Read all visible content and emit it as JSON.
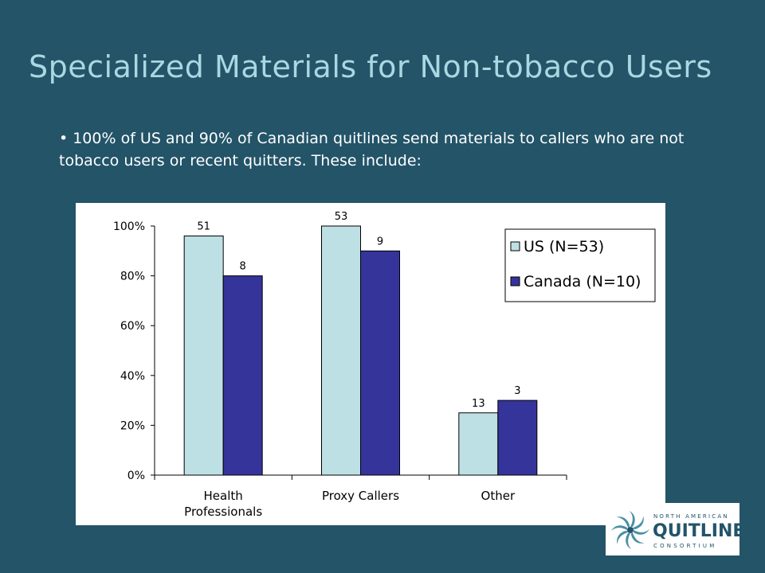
{
  "slide": {
    "title": "Specialized Materials for Non-tobacco Users",
    "bullet": "100% of US and 90% of Canadian quitlines send materials to callers who are not tobacco users or recent quitters. These include:"
  },
  "chart_data": {
    "type": "bar",
    "categories": [
      "Health Professionals",
      "Proxy Callers",
      "Other"
    ],
    "category_lines": [
      [
        "Health",
        "Professionals"
      ],
      [
        "Proxy Callers"
      ],
      [
        "Other"
      ]
    ],
    "series": [
      {
        "name": "US (N=53)",
        "values": [
          96,
          100,
          25
        ],
        "labels": [
          "51",
          "53",
          "13"
        ],
        "color": "#bde0e4"
      },
      {
        "name": "Canada (N=10)",
        "values": [
          80,
          90,
          30
        ],
        "labels": [
          "8",
          "9",
          "3"
        ],
        "color": "#35349b"
      }
    ],
    "ylim": [
      0,
      100
    ],
    "yticks": [
      "0%",
      "20%",
      "40%",
      "60%",
      "80%",
      "100%"
    ],
    "legend_position": "right",
    "plot_background": "#ffffff",
    "grid": false
  },
  "logo": {
    "top_text": "NORTH AMERICAN",
    "main_text": "QUITLINE",
    "bottom_text": "CONSORTIUM"
  }
}
